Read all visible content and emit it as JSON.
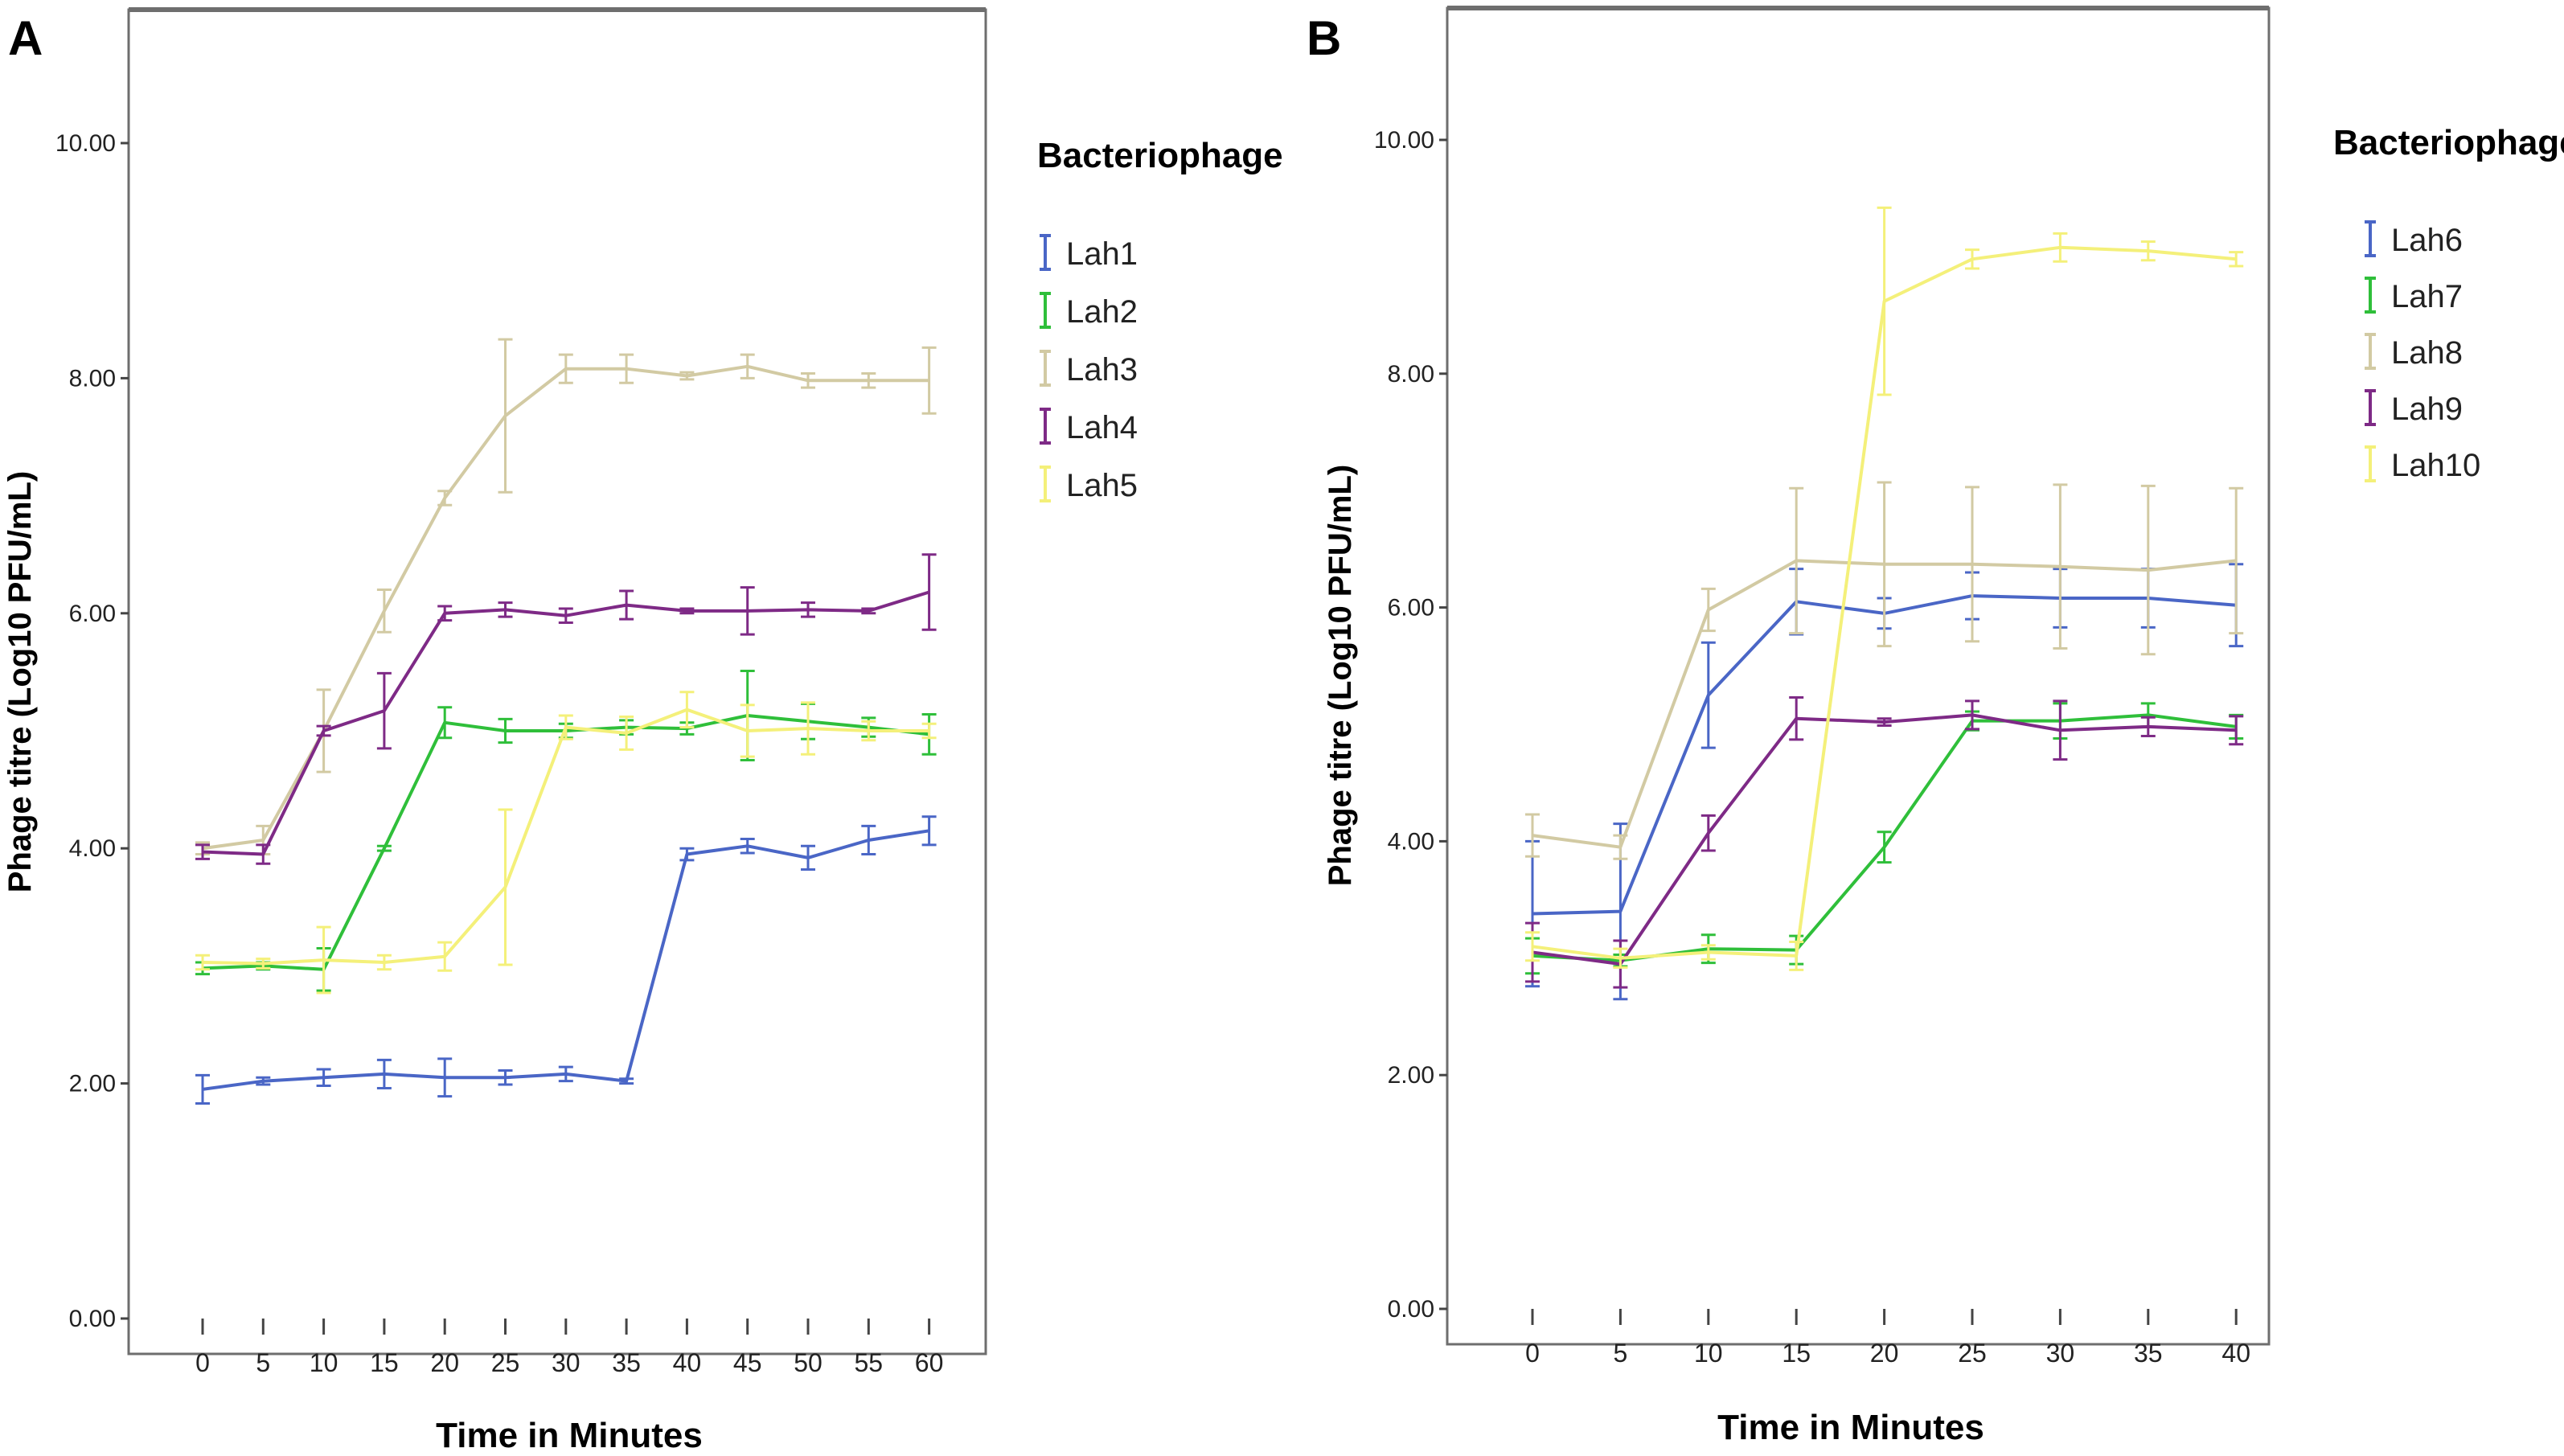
{
  "figure": {
    "panels": [
      "A",
      "B"
    ]
  },
  "colors": {
    "Lah1": "#4a66c6",
    "Lah2": "#2fbf3a",
    "Lah3": "#d2caa3",
    "Lah4": "#7e2a86",
    "Lah5": "#f4f07a",
    "Lah6": "#4a66c6",
    "Lah7": "#2fbf3a",
    "Lah8": "#d2caa3",
    "Lah9": "#7e2a86",
    "Lah10": "#f4f07a"
  },
  "chart_data": [
    {
      "panel": "A",
      "type": "line",
      "xlabel": "Time in Minutes",
      "ylabel": "Phage titre (Log10 PFU/mL)",
      "legend_title": "Bacteriophage",
      "legend_position": "right",
      "ylim": [
        0,
        11.2
      ],
      "yticks": [
        0,
        2,
        4,
        6,
        8,
        10
      ],
      "ytick_labels": [
        "0.00",
        "2.00",
        "4.00",
        "6.00",
        "8.00",
        "10.00"
      ],
      "x": [
        0,
        5,
        10,
        15,
        20,
        25,
        30,
        35,
        40,
        45,
        50,
        55,
        60
      ],
      "xtick_labels": [
        "0",
        "5",
        "10",
        "15",
        "20",
        "25",
        "30",
        "35",
        "40",
        "45",
        "50",
        "55",
        "60"
      ],
      "series": [
        {
          "name": "Lah1",
          "values": [
            1.95,
            2.02,
            2.05,
            2.08,
            2.05,
            2.05,
            2.08,
            2.02,
            3.95,
            4.02,
            3.92,
            4.07,
            4.15
          ],
          "errors": [
            0.12,
            0.03,
            0.07,
            0.12,
            0.16,
            0.06,
            0.06,
            0.02,
            0.05,
            0.06,
            0.1,
            0.12,
            0.12
          ]
        },
        {
          "name": "Lah2",
          "values": [
            2.98,
            3.0,
            2.97,
            4.0,
            5.07,
            5.0,
            5.0,
            5.03,
            5.02,
            5.13,
            5.08,
            5.03,
            4.97
          ],
          "errors": [
            0.05,
            0.03,
            0.18,
            0.02,
            0.13,
            0.1,
            0.06,
            0.06,
            0.05,
            0.38,
            0.15,
            0.08,
            0.17
          ]
        },
        {
          "name": "Lah3",
          "values": [
            4.0,
            4.07,
            5.0,
            6.02,
            6.98,
            7.68,
            8.08,
            8.08,
            8.02,
            8.1,
            7.98,
            7.98,
            7.98
          ],
          "errors": [
            0.05,
            0.12,
            0.35,
            0.18,
            0.06,
            0.65,
            0.12,
            0.12,
            0.03,
            0.1,
            0.06,
            0.06,
            0.28
          ]
        },
        {
          "name": "Lah4",
          "values": [
            3.97,
            3.95,
            5.0,
            5.17,
            6.0,
            6.03,
            5.98,
            6.07,
            6.02,
            6.02,
            6.03,
            6.02,
            6.18
          ],
          "errors": [
            0.06,
            0.08,
            0.04,
            0.32,
            0.06,
            0.06,
            0.06,
            0.12,
            0.02,
            0.2,
            0.06,
            0.02,
            0.32
          ]
        },
        {
          "name": "Lah5",
          "values": [
            3.03,
            3.02,
            3.05,
            3.03,
            3.08,
            3.67,
            5.03,
            4.98,
            5.18,
            5.0,
            5.02,
            5.0,
            5.0
          ],
          "errors": [
            0.06,
            0.04,
            0.28,
            0.06,
            0.12,
            0.66,
            0.1,
            0.14,
            0.15,
            0.22,
            0.22,
            0.08,
            0.06
          ]
        }
      ]
    },
    {
      "panel": "B",
      "type": "line",
      "xlabel": "Time in Minutes",
      "ylabel": "Phage titre (Log10 PFU/mL)",
      "legend_title": "Bacteriophage",
      "legend_position": "right",
      "ylim": [
        0,
        11.1
      ],
      "yticks": [
        0,
        2,
        4,
        6,
        8,
        10
      ],
      "ytick_labels": [
        "0.00",
        "2.00",
        "4.00",
        "6.00",
        "8.00",
        "10.00"
      ],
      "x": [
        0,
        5,
        10,
        15,
        20,
        25,
        30,
        35,
        40
      ],
      "xtick_labels": [
        "0",
        "5",
        "10",
        "15",
        "20",
        "25",
        "30",
        "35",
        "40"
      ],
      "series": [
        {
          "name": "Lah6",
          "values": [
            3.38,
            3.4,
            5.25,
            6.05,
            5.95,
            6.1,
            6.08,
            6.08,
            6.02
          ],
          "errors": [
            0.62,
            0.75,
            0.45,
            0.28,
            0.13,
            0.2,
            0.25,
            0.25,
            0.35
          ]
        },
        {
          "name": "Lah7",
          "values": [
            3.02,
            2.98,
            3.08,
            3.07,
            3.95,
            5.03,
            5.03,
            5.08,
            4.98
          ],
          "errors": [
            0.15,
            0.05,
            0.12,
            0.12,
            0.13,
            0.08,
            0.15,
            0.1,
            0.1
          ]
        },
        {
          "name": "Lah8",
          "values": [
            4.05,
            3.95,
            5.98,
            6.4,
            6.37,
            6.37,
            6.35,
            6.32,
            6.4
          ],
          "errors": [
            0.18,
            0.1,
            0.18,
            0.62,
            0.7,
            0.66,
            0.7,
            0.72,
            0.62
          ]
        },
        {
          "name": "Lah9",
          "values": [
            3.05,
            2.95,
            4.07,
            5.05,
            5.02,
            5.08,
            4.95,
            4.98,
            4.95
          ],
          "errors": [
            0.25,
            0.2,
            0.15,
            0.18,
            0.03,
            0.12,
            0.25,
            0.08,
            0.12
          ]
        },
        {
          "name": "Lah10",
          "values": [
            3.1,
            3.0,
            3.05,
            3.02,
            8.62,
            8.98,
            9.08,
            9.05,
            8.98
          ],
          "errors": [
            0.12,
            0.08,
            0.06,
            0.12,
            0.8,
            0.08,
            0.12,
            0.08,
            0.06
          ]
        }
      ]
    }
  ]
}
